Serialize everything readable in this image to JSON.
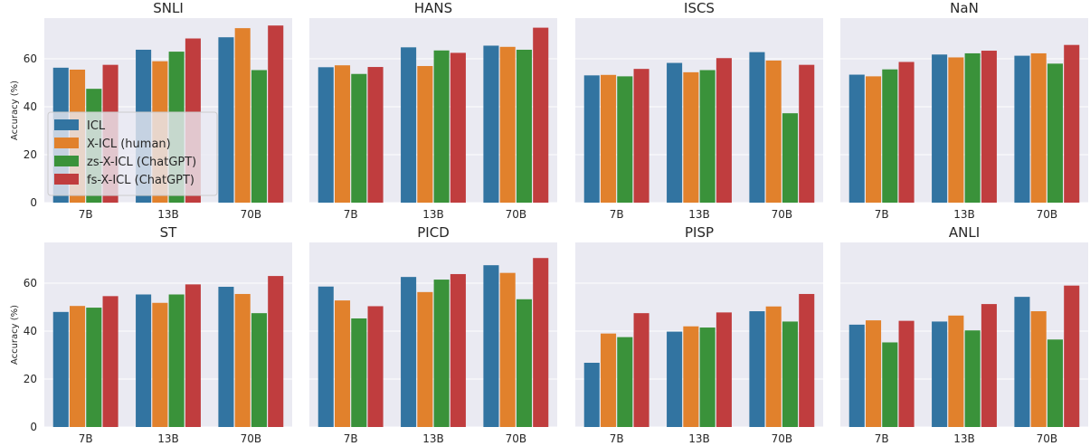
{
  "colors": {
    "background": "#eaeaf2",
    "grid": "#ffffff",
    "series": [
      "#3274a1",
      "#e1812c",
      "#3a923a",
      "#c03d3e"
    ]
  },
  "chart_data": {
    "type": "bar",
    "ylabel": "Accuracy (%)",
    "ylim": [
      0,
      77
    ],
    "yticks": [
      0,
      20,
      40,
      60
    ],
    "grid": true,
    "legend_position": "inside first panel, center-left",
    "legend": [
      "ICL",
      "X-ICL (human)",
      "zs-X-ICL (ChatGPT)",
      "fs-X-ICL (ChatGPT)"
    ],
    "categories": [
      "7B",
      "13B",
      "70B"
    ],
    "panels": [
      {
        "title": "SNLI",
        "series": [
          {
            "name": "ICL",
            "values": [
              56.3,
              63.8,
              69.0
            ]
          },
          {
            "name": "X-ICL (human)",
            "values": [
              55.5,
              59.0,
              72.8
            ]
          },
          {
            "name": "zs-X-ICL (ChatGPT)",
            "values": [
              47.5,
              63.0,
              55.3
            ]
          },
          {
            "name": "fs-X-ICL (ChatGPT)",
            "values": [
              57.5,
              68.5,
              73.9
            ]
          }
        ]
      },
      {
        "title": "HANS",
        "series": [
          {
            "name": "ICL",
            "values": [
              56.5,
              64.8,
              65.5
            ]
          },
          {
            "name": "X-ICL (human)",
            "values": [
              57.3,
              57.0,
              65.0
            ]
          },
          {
            "name": "zs-X-ICL (ChatGPT)",
            "values": [
              53.7,
              63.5,
              63.8
            ]
          },
          {
            "name": "fs-X-ICL (ChatGPT)",
            "values": [
              56.6,
              62.5,
              73.0
            ]
          }
        ]
      },
      {
        "title": "ISCS",
        "series": [
          {
            "name": "ICL",
            "values": [
              53.1,
              58.3,
              62.8
            ]
          },
          {
            "name": "X-ICL (human)",
            "values": [
              53.3,
              54.4,
              59.3
            ]
          },
          {
            "name": "zs-X-ICL (ChatGPT)",
            "values": [
              52.7,
              55.3,
              37.3
            ]
          },
          {
            "name": "fs-X-ICL (ChatGPT)",
            "values": [
              55.8,
              60.3,
              57.5
            ]
          }
        ]
      },
      {
        "title": "NaN",
        "series": [
          {
            "name": "ICL",
            "values": [
              53.4,
              61.8,
              61.3
            ]
          },
          {
            "name": "X-ICL (human)",
            "values": [
              52.7,
              60.6,
              62.3
            ]
          },
          {
            "name": "zs-X-ICL (ChatGPT)",
            "values": [
              55.6,
              62.3,
              58.0
            ]
          },
          {
            "name": "fs-X-ICL (ChatGPT)",
            "values": [
              58.7,
              63.4,
              65.8
            ]
          }
        ]
      },
      {
        "title": "ST",
        "series": [
          {
            "name": "ICL",
            "values": [
              48.0,
              55.3,
              58.5
            ]
          },
          {
            "name": "X-ICL (human)",
            "values": [
              50.5,
              51.8,
              55.5
            ]
          },
          {
            "name": "zs-X-ICL (ChatGPT)",
            "values": [
              49.8,
              55.3,
              47.5
            ]
          },
          {
            "name": "fs-X-ICL (ChatGPT)",
            "values": [
              54.6,
              59.5,
              63.0
            ]
          }
        ]
      },
      {
        "title": "PICD",
        "series": [
          {
            "name": "ICL",
            "values": [
              58.6,
              62.6,
              67.5
            ]
          },
          {
            "name": "X-ICL (human)",
            "values": [
              52.8,
              56.3,
              64.3
            ]
          },
          {
            "name": "zs-X-ICL (ChatGPT)",
            "values": [
              45.3,
              61.5,
              53.3
            ]
          },
          {
            "name": "fs-X-ICL (ChatGPT)",
            "values": [
              50.4,
              63.8,
              70.5
            ]
          }
        ]
      },
      {
        "title": "PISP",
        "series": [
          {
            "name": "ICL",
            "values": [
              26.8,
              39.8,
              48.3
            ]
          },
          {
            "name": "X-ICL (human)",
            "values": [
              39.0,
              42.0,
              50.3
            ]
          },
          {
            "name": "zs-X-ICL (ChatGPT)",
            "values": [
              37.5,
              41.5,
              44.0
            ]
          },
          {
            "name": "fs-X-ICL (ChatGPT)",
            "values": [
              47.5,
              47.8,
              55.5
            ]
          }
        ]
      },
      {
        "title": "ANLI",
        "series": [
          {
            "name": "ICL",
            "values": [
              42.7,
              44.0,
              54.3
            ]
          },
          {
            "name": "X-ICL (human)",
            "values": [
              44.5,
              46.5,
              48.3
            ]
          },
          {
            "name": "zs-X-ICL (ChatGPT)",
            "values": [
              35.3,
              40.3,
              36.5
            ]
          },
          {
            "name": "fs-X-ICL (ChatGPT)",
            "values": [
              44.3,
              51.3,
              59.0
            ]
          }
        ]
      }
    ]
  }
}
